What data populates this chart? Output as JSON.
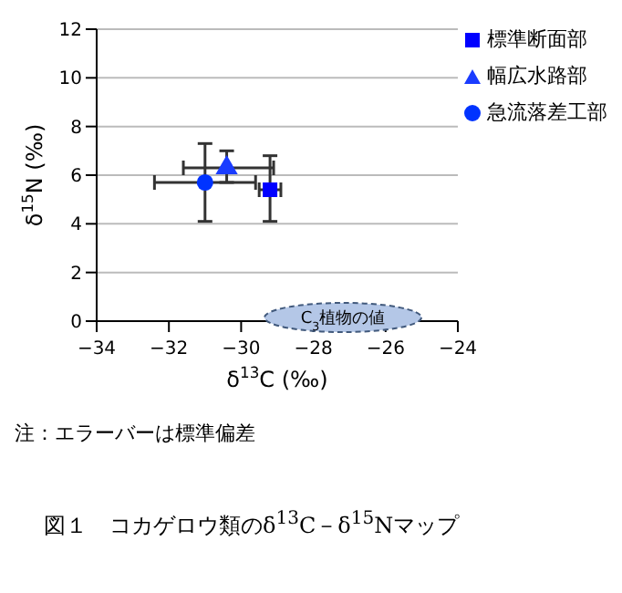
{
  "chart_data": {
    "type": "scatter",
    "xlabel": "δ$^{13}$C (‰)",
    "ylabel": "δ$^{15}$N (‰)",
    "title": "図１　コカゲロウ類のδ$^{13}$C－δ$^{15}$Nマップ",
    "xlim": [
      -34,
      -24
    ],
    "xticks": [
      -34,
      -32,
      -30,
      -28,
      -26,
      -24
    ],
    "ylim": [
      0,
      12
    ],
    "yticks": [
      0,
      2,
      4,
      6,
      8,
      10,
      12
    ],
    "grid": "y",
    "legend": "top right",
    "series": [
      {
        "name": "標準断面部",
        "color": "#0000ff",
        "marker": "square",
        "x": [
          -29.2
        ],
        "values": [
          5.4
        ],
        "errors": [
          [
            4.1,
            6.8
          ]
        ],
        "xerrors": [
          0.3
        ]
      },
      {
        "name": "幅広水路部",
        "color": "#1a3cff",
        "marker": "triangle",
        "x": [
          -30.4
        ],
        "values": [
          6.3
        ],
        "errors": [
          [
            5.7,
            7.0
          ]
        ],
        "xerrors": [
          [
            -31.6,
            -29.1
          ]
        ]
      },
      {
        "name": "急流落差工部",
        "color": "#0033ff",
        "marker": "circle",
        "x": [
          -31.0
        ],
        "values": [
          5.7
        ],
        "errors": [
          [
            4.1,
            7.3
          ]
        ],
        "xerrors": [
          [
            -32.4,
            -29.6
          ]
        ]
      }
    ],
    "annotations": [
      "C$_{3}$植物の値",
      "注：エラーバーは標準偏差"
    ]
  }
}
